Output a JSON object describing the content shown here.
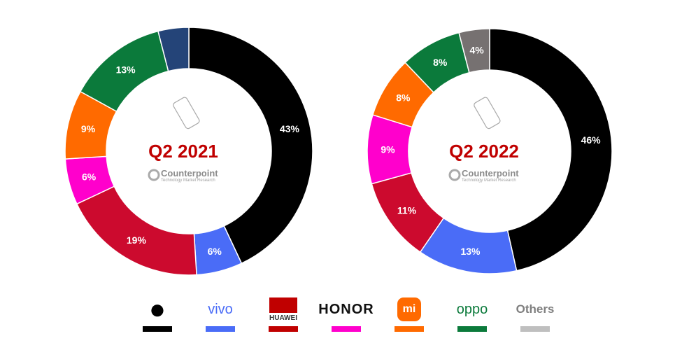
{
  "chart_data": [
    {
      "type": "pie",
      "subtype": "donut",
      "title": "Q2 2021",
      "source": "Counterpoint",
      "source_sub": "Technology Market Research",
      "categories": [
        "Apple",
        "vivo",
        "HUAWEI",
        "HONOR",
        "Xiaomi",
        "OPPO",
        "Others"
      ],
      "values": [
        43,
        6,
        19,
        6,
        9,
        13,
        4
      ],
      "labels": [
        "43%",
        "6%",
        "19%",
        "6%",
        "9%",
        "13%",
        ""
      ],
      "colors": [
        "#000000",
        "#4a6cf7",
        "#cc0a2e",
        "#ff00cc",
        "#ff6a00",
        "#0b7a3b",
        "#244478"
      ]
    },
    {
      "type": "pie",
      "subtype": "donut",
      "title": "Q2 2022",
      "source": "Counterpoint",
      "source_sub": "Technology Market Research",
      "categories": [
        "Apple",
        "vivo",
        "HUAWEI",
        "HONOR",
        "Xiaomi",
        "OPPO",
        "Others"
      ],
      "values": [
        46,
        13,
        11,
        9,
        8,
        8,
        4
      ],
      "labels": [
        "46%",
        "13%",
        "11%",
        "9%",
        "8%",
        "8%",
        "4%"
      ],
      "colors": [
        "#000000",
        "#4a6cf7",
        "#cc0a2e",
        "#ff00cc",
        "#ff6a00",
        "#0b7a3b",
        "#767171"
      ]
    }
  ],
  "legend": [
    {
      "name": "Apple",
      "text": "",
      "color": "#000000",
      "text_color": "#000"
    },
    {
      "name": "vivo",
      "text": "vivo",
      "color": "#4a6cf7",
      "text_color": "#4a6cf7"
    },
    {
      "name": "HUAWEI",
      "text": "HUAWEI",
      "color": "#c00000",
      "text_color": "#333"
    },
    {
      "name": "HONOR",
      "text": "HONOR",
      "color": "#ff00cc",
      "text_color": "#111"
    },
    {
      "name": "Xiaomi",
      "text": "mi",
      "color": "#ff6a00",
      "text_color": "#fff"
    },
    {
      "name": "OPPO",
      "text": "oppo",
      "color": "#0b7a3b",
      "text_color": "#0b7a3b"
    },
    {
      "name": "Others",
      "text": "Others",
      "color": "#bfbfbf",
      "text_color": "#7f7f7f"
    }
  ]
}
